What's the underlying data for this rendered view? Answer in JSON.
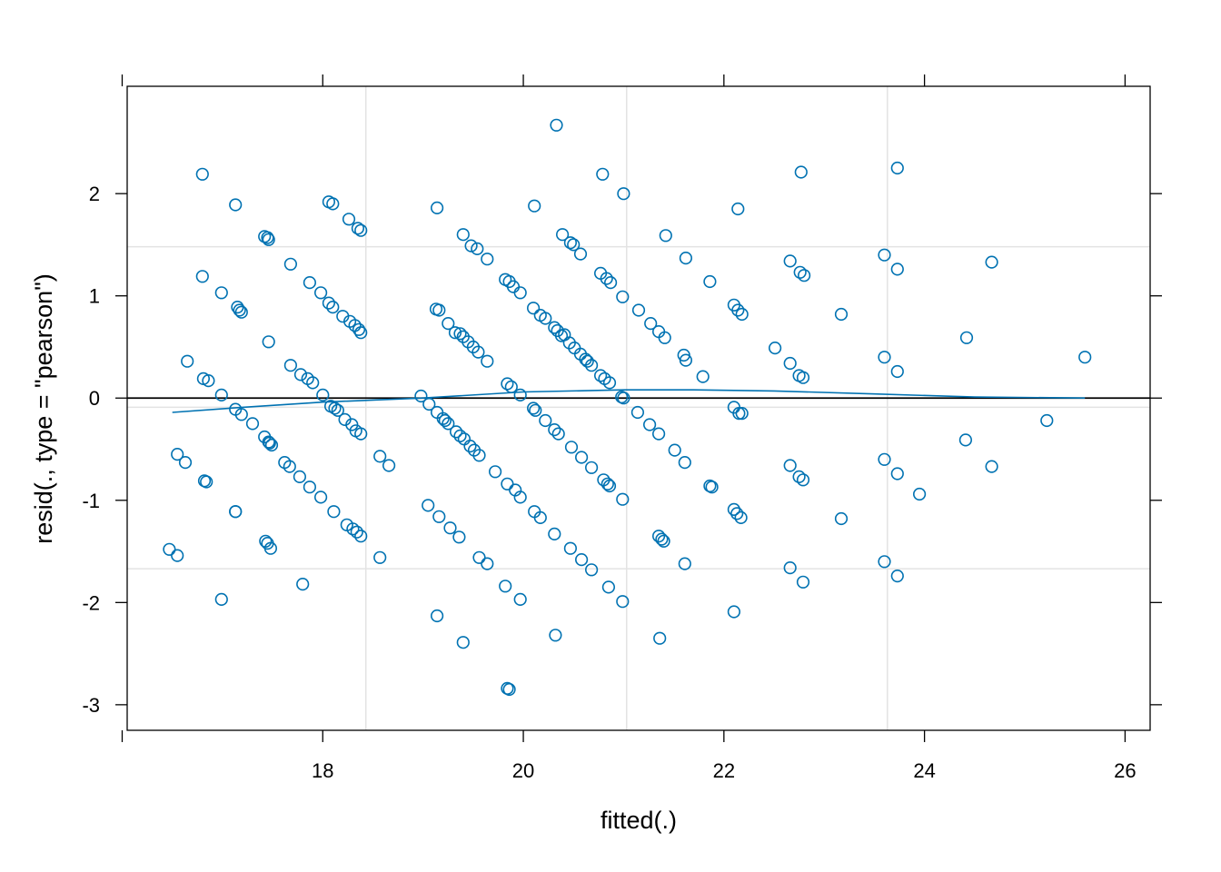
{
  "chart_data": {
    "type": "scatter",
    "title": "",
    "xlabel": "fitted(.)",
    "ylabel": "resid(., type = \"pearson\")",
    "xlim": [
      16.05,
      26.25
    ],
    "ylim": [
      -3.25,
      3.05
    ],
    "xticks": [
      16,
      18,
      20,
      22,
      24,
      26
    ],
    "xtick_labels": [
      "",
      "18",
      "20",
      "22",
      "24",
      "26"
    ],
    "yticks": [
      -3,
      -2,
      -1,
      0,
      1,
      2
    ],
    "ytick_labels": [
      "-3",
      "-2",
      "-1",
      "0",
      "1",
      "2"
    ],
    "reference_lines": {
      "h": [
        0
      ],
      "h_grey": [
        1.48,
        -0.09,
        -1.67
      ],
      "v_grey": [
        18.43,
        21.03,
        23.63
      ]
    },
    "grid": false,
    "legend": "none",
    "colors": {
      "points": "#0072b2",
      "smooth": "#0072b2",
      "reference": "#000000",
      "grid": "#e3e3e3"
    },
    "smooth": {
      "x": [
        16.5,
        17.2,
        18.0,
        19.0,
        20.0,
        21.0,
        21.7,
        22.5,
        23.5,
        24.5,
        25.6
      ],
      "y": [
        -0.14,
        -0.09,
        -0.04,
        0.0,
        0.06,
        0.08,
        0.08,
        0.07,
        0.04,
        0.01,
        0.0
      ]
    },
    "series": [
      {
        "points": [
          [
            16.47,
            -1.48
          ],
          [
            16.55,
            -1.54
          ],
          [
            16.55,
            -0.55
          ],
          [
            16.63,
            -0.63
          ],
          [
            16.65,
            0.36
          ],
          [
            16.8,
            2.19
          ],
          [
            16.82,
            -0.81
          ],
          [
            16.84,
            -0.82
          ],
          [
            16.8,
            1.19
          ],
          [
            16.81,
            0.19
          ],
          [
            16.86,
            0.17
          ],
          [
            16.99,
            -1.97
          ],
          [
            16.99,
            1.03
          ],
          [
            16.99,
            0.03
          ],
          [
            17.13,
            1.89
          ],
          [
            17.13,
            -1.11
          ],
          [
            17.13,
            -1.11
          ],
          [
            17.13,
            -0.11
          ],
          [
            17.15,
            0.89
          ],
          [
            17.17,
            0.86
          ],
          [
            17.19,
            0.84
          ],
          [
            17.19,
            -0.16
          ],
          [
            17.3,
            -0.25
          ],
          [
            17.42,
            1.58
          ],
          [
            17.42,
            -0.38
          ],
          [
            17.43,
            -1.4
          ],
          [
            17.45,
            -1.42
          ],
          [
            17.45,
            1.57
          ],
          [
            17.46,
            1.55
          ],
          [
            17.46,
            -0.43
          ],
          [
            17.47,
            -0.44
          ],
          [
            17.48,
            -1.47
          ],
          [
            17.49,
            -0.46
          ],
          [
            17.46,
            0.55
          ],
          [
            17.62,
            -0.63
          ],
          [
            17.67,
            -0.67
          ],
          [
            17.68,
            1.31
          ],
          [
            17.68,
            0.32
          ],
          [
            17.77,
            -0.77
          ],
          [
            17.78,
            0.23
          ],
          [
            17.8,
            -1.82
          ],
          [
            17.85,
            0.19
          ],
          [
            17.87,
            -0.87
          ],
          [
            17.87,
            1.13
          ],
          [
            17.9,
            0.15
          ],
          [
            17.98,
            -0.97
          ],
          [
            17.98,
            1.03
          ],
          [
            18.0,
            0.03
          ],
          [
            18.06,
            1.92
          ],
          [
            18.06,
            0.93
          ],
          [
            18.08,
            -0.08
          ],
          [
            18.1,
            1.9
          ],
          [
            18.1,
            0.89
          ],
          [
            18.11,
            -1.11
          ],
          [
            18.12,
            -0.1
          ],
          [
            18.15,
            -0.12
          ],
          [
            18.2,
            0.8
          ],
          [
            18.22,
            -0.21
          ],
          [
            18.24,
            -1.24
          ],
          [
            18.26,
            1.75
          ],
          [
            18.27,
            0.75
          ],
          [
            18.29,
            -0.26
          ],
          [
            18.3,
            -1.28
          ],
          [
            18.32,
            0.71
          ],
          [
            18.33,
            -0.32
          ],
          [
            18.34,
            -1.31
          ],
          [
            18.35,
            1.66
          ],
          [
            18.36,
            0.67
          ],
          [
            18.38,
            1.64
          ],
          [
            18.38,
            -1.35
          ],
          [
            18.38,
            0.64
          ],
          [
            18.38,
            -0.35
          ],
          [
            18.57,
            -0.57
          ],
          [
            18.57,
            -1.56
          ],
          [
            18.66,
            -0.66
          ],
          [
            18.98,
            0.02
          ],
          [
            19.05,
            -1.05
          ],
          [
            19.06,
            -0.06
          ],
          [
            19.13,
            0.87
          ],
          [
            19.14,
            1.86
          ],
          [
            19.14,
            -2.13
          ],
          [
            19.14,
            -0.14
          ],
          [
            19.16,
            -1.16
          ],
          [
            19.16,
            0.86
          ],
          [
            19.2,
            -0.2
          ],
          [
            19.22,
            -0.22
          ],
          [
            19.25,
            0.73
          ],
          [
            19.25,
            -0.25
          ],
          [
            19.27,
            -1.27
          ],
          [
            19.32,
            0.64
          ],
          [
            19.33,
            -0.33
          ],
          [
            19.36,
            -1.36
          ],
          [
            19.37,
            0.63
          ],
          [
            19.37,
            -0.37
          ],
          [
            19.4,
            -2.39
          ],
          [
            19.4,
            1.6
          ],
          [
            19.4,
            0.6
          ],
          [
            19.41,
            -0.4
          ],
          [
            19.45,
            0.55
          ],
          [
            19.47,
            -0.47
          ],
          [
            19.48,
            1.49
          ],
          [
            19.5,
            0.5
          ],
          [
            19.51,
            -0.51
          ],
          [
            19.54,
            1.46
          ],
          [
            19.55,
            0.45
          ],
          [
            19.56,
            -0.56
          ],
          [
            19.56,
            -1.56
          ],
          [
            19.64,
            1.36
          ],
          [
            19.64,
            0.36
          ],
          [
            19.64,
            -1.62
          ],
          [
            19.72,
            -0.72
          ],
          [
            19.82,
            1.16
          ],
          [
            19.82,
            -1.84
          ],
          [
            19.84,
            0.14
          ],
          [
            19.84,
            -0.84
          ],
          [
            19.84,
            -2.84
          ],
          [
            19.86,
            1.14
          ],
          [
            19.86,
            -2.85
          ],
          [
            19.88,
            0.11
          ],
          [
            19.9,
            1.09
          ],
          [
            19.92,
            -0.9
          ],
          [
            19.97,
            1.03
          ],
          [
            19.97,
            0.03
          ],
          [
            19.97,
            -0.97
          ],
          [
            19.97,
            -1.97
          ],
          [
            20.1,
            0.88
          ],
          [
            20.1,
            -0.1
          ],
          [
            20.11,
            -1.11
          ],
          [
            20.11,
            1.88
          ],
          [
            20.12,
            -0.12
          ],
          [
            20.17,
            0.81
          ],
          [
            20.17,
            -1.17
          ],
          [
            20.22,
            0.78
          ],
          [
            20.22,
            -0.22
          ],
          [
            20.31,
            0.69
          ],
          [
            20.31,
            -0.31
          ],
          [
            20.31,
            -1.33
          ],
          [
            20.32,
            -2.32
          ],
          [
            20.33,
            2.67
          ],
          [
            20.34,
            0.66
          ],
          [
            20.35,
            -0.35
          ],
          [
            20.38,
            0.61
          ],
          [
            20.39,
            1.6
          ],
          [
            20.41,
            0.62
          ],
          [
            20.46,
            0.54
          ],
          [
            20.47,
            1.52
          ],
          [
            20.47,
            -1.47
          ],
          [
            20.48,
            -0.48
          ],
          [
            20.5,
            1.5
          ],
          [
            20.51,
            0.49
          ],
          [
            20.57,
            0.43
          ],
          [
            20.57,
            1.41
          ],
          [
            20.58,
            -0.58
          ],
          [
            20.58,
            -1.58
          ],
          [
            20.62,
            0.38
          ],
          [
            20.64,
            0.36
          ],
          [
            20.68,
            0.32
          ],
          [
            20.68,
            -0.68
          ],
          [
            20.68,
            -1.68
          ],
          [
            20.77,
            0.22
          ],
          [
            20.77,
            1.22
          ],
          [
            20.79,
            2.19
          ],
          [
            20.8,
            -0.8
          ],
          [
            20.81,
            0.19
          ],
          [
            20.83,
            1.17
          ],
          [
            20.84,
            -0.84
          ],
          [
            20.85,
            -1.85
          ],
          [
            20.86,
            0.15
          ],
          [
            20.86,
            -0.86
          ],
          [
            20.87,
            1.13
          ],
          [
            20.98,
            0.01
          ],
          [
            20.99,
            -0.99
          ],
          [
            20.99,
            0.99
          ],
          [
            20.99,
            -1.99
          ],
          [
            21.0,
            2.0
          ],
          [
            21.0,
            0.0
          ],
          [
            21.14,
            -0.14
          ],
          [
            21.15,
            0.86
          ],
          [
            21.26,
            -0.26
          ],
          [
            21.27,
            0.73
          ],
          [
            21.35,
            -1.35
          ],
          [
            21.35,
            -0.35
          ],
          [
            21.35,
            0.65
          ],
          [
            21.36,
            -2.35
          ],
          [
            21.38,
            -1.38
          ],
          [
            21.4,
            -1.4
          ],
          [
            21.41,
            0.59
          ],
          [
            21.42,
            1.59
          ],
          [
            21.51,
            -0.51
          ],
          [
            21.6,
            0.42
          ],
          [
            21.61,
            -0.63
          ],
          [
            21.61,
            -1.62
          ],
          [
            21.62,
            0.37
          ],
          [
            21.62,
            1.37
          ],
          [
            21.79,
            0.21
          ],
          [
            21.86,
            1.14
          ],
          [
            21.86,
            -0.86
          ],
          [
            21.88,
            -0.87
          ],
          [
            22.1,
            0.91
          ],
          [
            22.1,
            -0.09
          ],
          [
            22.1,
            -1.09
          ],
          [
            22.1,
            -2.09
          ],
          [
            22.13,
            -1.13
          ],
          [
            22.14,
            0.86
          ],
          [
            22.14,
            1.85
          ],
          [
            22.15,
            -0.15
          ],
          [
            22.17,
            -1.17
          ],
          [
            22.18,
            -0.15
          ],
          [
            22.18,
            0.82
          ],
          [
            22.51,
            0.49
          ],
          [
            22.66,
            -0.66
          ],
          [
            22.66,
            0.34
          ],
          [
            22.66,
            1.34
          ],
          [
            22.66,
            -1.66
          ],
          [
            22.75,
            -0.77
          ],
          [
            22.75,
            0.22
          ],
          [
            22.76,
            1.23
          ],
          [
            22.77,
            2.21
          ],
          [
            22.79,
            -0.8
          ],
          [
            22.79,
            -1.8
          ],
          [
            22.79,
            0.2
          ],
          [
            22.8,
            1.2
          ],
          [
            23.17,
            0.82
          ],
          [
            23.17,
            -1.18
          ],
          [
            23.6,
            1.4
          ],
          [
            23.6,
            0.4
          ],
          [
            23.6,
            -0.6
          ],
          [
            23.6,
            -1.6
          ],
          [
            23.73,
            2.25
          ],
          [
            23.73,
            1.26
          ],
          [
            23.73,
            0.26
          ],
          [
            23.73,
            -0.74
          ],
          [
            23.73,
            -1.74
          ],
          [
            23.95,
            -0.94
          ],
          [
            24.41,
            -0.41
          ],
          [
            24.42,
            0.59
          ],
          [
            24.67,
            1.33
          ],
          [
            24.67,
            -0.67
          ],
          [
            25.22,
            -0.22
          ],
          [
            25.6,
            0.4
          ]
        ]
      }
    ]
  }
}
